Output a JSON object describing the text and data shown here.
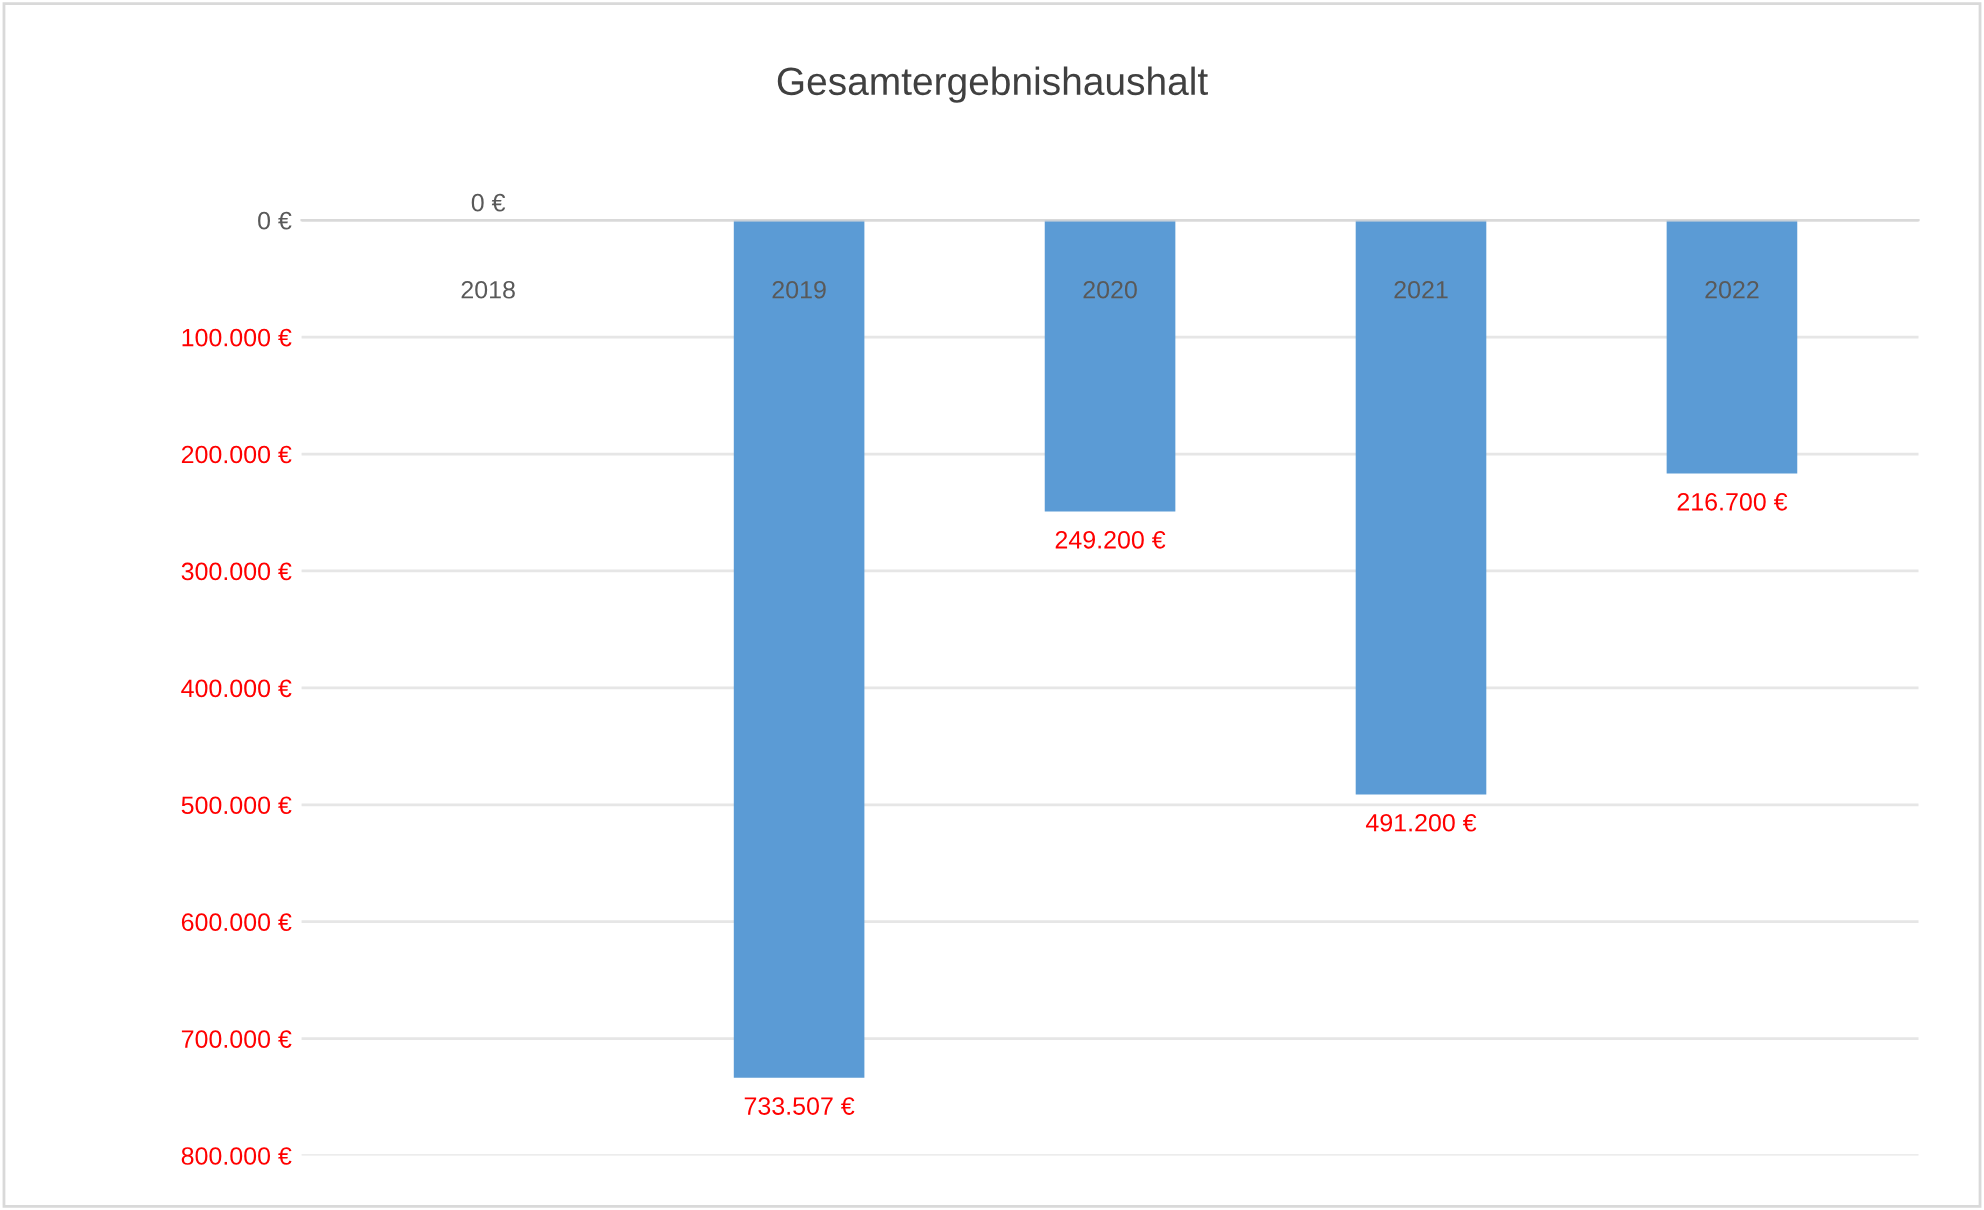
{
  "chart_data": {
    "type": "bar",
    "title": "Gesamtergebnishaushalt",
    "categories": [
      "2018",
      "2019",
      "2020",
      "2021",
      "2022"
    ],
    "values": [
      0,
      733507,
      249200,
      491200,
      216700
    ],
    "value_labels": [
      "0 €",
      "733.507 €",
      "249.200 €",
      "491.200 €",
      "216.700 €"
    ],
    "color": "#5b9bd5",
    "ylim": [
      800000,
      0
    ],
    "yticks": [
      {
        "value": 0,
        "label": "0 €"
      },
      {
        "value": 100000,
        "label": "100.000 €"
      },
      {
        "value": 200000,
        "label": "200.000 €"
      },
      {
        "value": 300000,
        "label": "300.000 €"
      },
      {
        "value": 400000,
        "label": "400.000 €"
      },
      {
        "value": 500000,
        "label": "500.000 €"
      },
      {
        "value": 600000,
        "label": "600.000 €"
      },
      {
        "value": 700000,
        "label": "700.000 €"
      },
      {
        "value": 800000,
        "label": "800.000 €"
      }
    ],
    "grid": "y"
  }
}
